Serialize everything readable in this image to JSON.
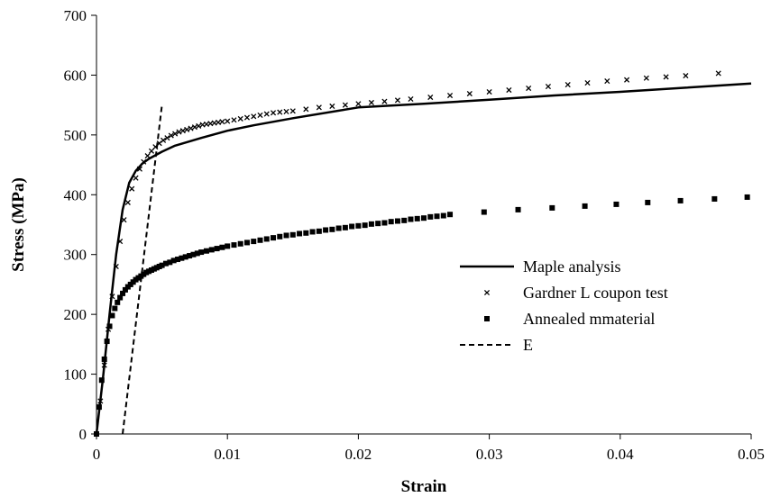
{
  "chart_data": {
    "type": "line",
    "title": "",
    "xlabel": "Strain",
    "ylabel": "Stress (MPa)",
    "xlim": [
      0,
      0.05
    ],
    "ylim": [
      0,
      700
    ],
    "xticks": [
      0,
      0.01,
      0.02,
      0.03,
      0.04,
      0.05
    ],
    "xtick_labels": [
      "0",
      "0.01",
      "0.02",
      "0.03",
      "0.04",
      "0.05"
    ],
    "yticks": [
      0,
      100,
      200,
      300,
      400,
      500,
      600,
      700
    ],
    "ytick_labels": [
      "0",
      "100",
      "200",
      "300",
      "400",
      "500",
      "600",
      "700"
    ],
    "grid": false,
    "legend_position": "right-middle",
    "series": [
      {
        "name": "Maple analysis",
        "style": "solid-line",
        "x": [
          0,
          0.0005,
          0.001,
          0.0015,
          0.002,
          0.0025,
          0.003,
          0.0035,
          0.004,
          0.005,
          0.006,
          0.008,
          0.01,
          0.012,
          0.015,
          0.02,
          0.025,
          0.03,
          0.035,
          0.04,
          0.045,
          0.05
        ],
        "y": [
          0,
          95,
          200,
          300,
          375,
          420,
          440,
          452,
          460,
          472,
          482,
          495,
          507,
          516,
          528,
          546,
          552,
          559,
          566,
          572,
          579,
          586
        ]
      },
      {
        "name": "Gardner L coupon test",
        "style": "x-marker",
        "x": [
          0,
          0.0003,
          0.0006,
          0.0009,
          0.0012,
          0.0015,
          0.0018,
          0.0021,
          0.0024,
          0.0027,
          0.003,
          0.0033,
          0.0036,
          0.0039,
          0.0042,
          0.0045,
          0.0048,
          0.0051,
          0.0054,
          0.0057,
          0.006,
          0.0063,
          0.0066,
          0.0069,
          0.0072,
          0.0075,
          0.0078,
          0.0081,
          0.0084,
          0.0087,
          0.009,
          0.0093,
          0.0096,
          0.01,
          0.0105,
          0.011,
          0.0115,
          0.012,
          0.0125,
          0.013,
          0.0135,
          0.014,
          0.0145,
          0.015,
          0.016,
          0.017,
          0.018,
          0.019,
          0.02,
          0.021,
          0.022,
          0.023,
          0.024,
          0.0255,
          0.027,
          0.0285,
          0.03,
          0.0315,
          0.033,
          0.0345,
          0.036,
          0.0375,
          0.039,
          0.0405,
          0.042,
          0.0435,
          0.045,
          0.0475
        ],
        "y": [
          0,
          55,
          115,
          175,
          230,
          280,
          322,
          358,
          387,
          410,
          428,
          443,
          455,
          465,
          473,
          480,
          486,
          491,
          495,
          499,
          502,
          505,
          507,
          509,
          511,
          513,
          515,
          517,
          518,
          519,
          520,
          521,
          522,
          523,
          525,
          527,
          529,
          531,
          533,
          535,
          537,
          538,
          539,
          540,
          543,
          546,
          548,
          550,
          552,
          554,
          556,
          558,
          560,
          563,
          566,
          569,
          572,
          575,
          578,
          581,
          584,
          587,
          590,
          592,
          595,
          597,
          599,
          603
        ]
      },
      {
        "name": "Annealed mmaterial",
        "style": "square-marker",
        "x": [
          0,
          0.0002,
          0.0004,
          0.0006,
          0.0008,
          0.001,
          0.0012,
          0.0014,
          0.0016,
          0.0018,
          0.002,
          0.0022,
          0.0024,
          0.0026,
          0.0028,
          0.003,
          0.0032,
          0.0034,
          0.0036,
          0.0038,
          0.004,
          0.0042,
          0.0044,
          0.0046,
          0.0048,
          0.005,
          0.0053,
          0.0056,
          0.0059,
          0.0062,
          0.0065,
          0.0068,
          0.0071,
          0.0074,
          0.0077,
          0.008,
          0.0084,
          0.0088,
          0.0092,
          0.0096,
          0.01,
          0.0105,
          0.011,
          0.0115,
          0.012,
          0.0125,
          0.013,
          0.0135,
          0.014,
          0.0145,
          0.015,
          0.0155,
          0.016,
          0.0165,
          0.017,
          0.0175,
          0.018,
          0.0185,
          0.019,
          0.0195,
          0.02,
          0.0205,
          0.021,
          0.0215,
          0.022,
          0.0225,
          0.023,
          0.0235,
          0.024,
          0.0245,
          0.025,
          0.0255,
          0.026,
          0.0265,
          0.027,
          0.0296,
          0.0322,
          0.0348,
          0.0373,
          0.0397,
          0.0421,
          0.0446,
          0.0472,
          0.0497
        ],
        "y": [
          0,
          45,
          90,
          125,
          155,
          180,
          198,
          210,
          220,
          228,
          235,
          241,
          246,
          250,
          254,
          258,
          261,
          264,
          267,
          270,
          272,
          274,
          276,
          278,
          280,
          282,
          285,
          287,
          290,
          292,
          294,
          296,
          298,
          300,
          302,
          304,
          306,
          308,
          310,
          312,
          314,
          316,
          318,
          320,
          322,
          324,
          326,
          328,
          330,
          332,
          333,
          335,
          336,
          338,
          339,
          341,
          342,
          344,
          345,
          347,
          348,
          349,
          351,
          352,
          353,
          355,
          356,
          357,
          359,
          360,
          361,
          363,
          364,
          365,
          367,
          371,
          375,
          378,
          381,
          384,
          387,
          390,
          393,
          396
        ]
      },
      {
        "name": "E",
        "style": "dashed-line",
        "x": [
          0.002,
          0.005
        ],
        "y": [
          0,
          550
        ]
      }
    ]
  }
}
